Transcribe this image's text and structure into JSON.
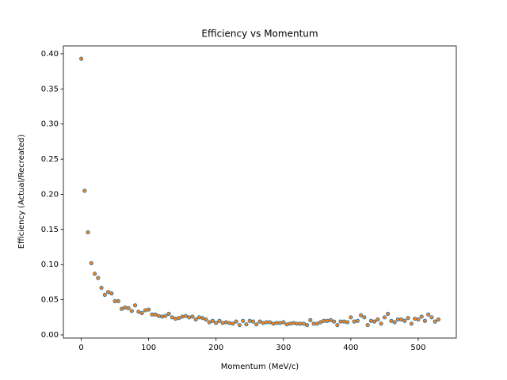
{
  "chart_data": {
    "type": "scatter",
    "title": "Efficiency vs Momentum",
    "x_label": "Momentum (MeV/c)",
    "y_label": "Efficiency (Actual/Recreated)",
    "x": [
      0,
      5,
      10,
      15,
      20,
      25,
      30,
      35,
      40,
      45,
      50,
      55,
      60,
      65,
      70,
      75,
      80,
      85,
      90,
      95,
      100,
      105,
      110,
      115,
      120,
      125,
      130,
      135,
      140,
      145,
      150,
      155,
      160,
      165,
      170,
      175,
      180,
      185,
      190,
      195,
      200,
      205,
      210,
      215,
      220,
      225,
      230,
      235,
      240,
      245,
      250,
      255,
      260,
      265,
      270,
      275,
      280,
      285,
      290,
      295,
      300,
      305,
      310,
      315,
      320,
      325,
      330,
      335,
      340,
      345,
      350,
      355,
      360,
      365,
      370,
      375,
      380,
      385,
      390,
      395,
      400,
      405,
      410,
      415,
      420,
      425,
      430,
      435,
      440,
      445,
      450,
      455,
      460,
      465,
      470,
      475,
      480,
      485,
      490,
      495,
      500,
      505,
      510,
      515,
      520,
      525,
      530
    ],
    "values": [
      0.393,
      0.205,
      0.146,
      0.102,
      0.087,
      0.081,
      0.067,
      0.057,
      0.061,
      0.059,
      0.048,
      0.048,
      0.037,
      0.039,
      0.038,
      0.034,
      0.042,
      0.033,
      0.031,
      0.035,
      0.036,
      0.029,
      0.029,
      0.027,
      0.026,
      0.027,
      0.03,
      0.025,
      0.023,
      0.024,
      0.026,
      0.027,
      0.025,
      0.026,
      0.022,
      0.025,
      0.024,
      0.022,
      0.018,
      0.02,
      0.017,
      0.02,
      0.017,
      0.018,
      0.017,
      0.016,
      0.019,
      0.014,
      0.02,
      0.015,
      0.02,
      0.019,
      0.015,
      0.019,
      0.017,
      0.018,
      0.018,
      0.016,
      0.017,
      0.017,
      0.018,
      0.015,
      0.016,
      0.017,
      0.016,
      0.016,
      0.016,
      0.014,
      0.021,
      0.016,
      0.016,
      0.018,
      0.02,
      0.02,
      0.021,
      0.019,
      0.014,
      0.019,
      0.019,
      0.018,
      0.025,
      0.019,
      0.02,
      0.028,
      0.025,
      0.014,
      0.02,
      0.019,
      0.022,
      0.016,
      0.025,
      0.03,
      0.02,
      0.018,
      0.022,
      0.022,
      0.02,
      0.024,
      0.016,
      0.023,
      0.022,
      0.026,
      0.02,
      0.029,
      0.025,
      0.019,
      0.022
    ],
    "color": "#ff7f0e",
    "edge_color": "#1f77b4",
    "xlim": [
      -26.5,
      556.5
    ],
    "xticks": [
      0,
      100,
      200,
      300,
      400,
      500
    ],
    "ylim": [
      -0.0045,
      0.4112
    ],
    "yticks": [
      {
        "value": 0,
        "label": "0.00"
      },
      {
        "value": 0.05,
        "label": "0.05"
      },
      {
        "value": 0.1,
        "label": "0.10"
      },
      {
        "value": 0.15,
        "label": "0.15"
      },
      {
        "value": 0.2,
        "label": "0.20"
      },
      {
        "value": 0.25,
        "label": "0.25"
      },
      {
        "value": 0.3,
        "label": "0.30"
      },
      {
        "value": 0.35,
        "label": "0.35"
      },
      {
        "value": 0.4,
        "label": "0.40"
      }
    ]
  }
}
